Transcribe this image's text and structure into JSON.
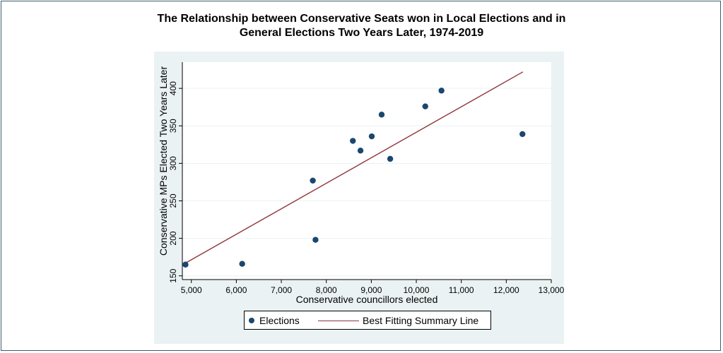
{
  "chart_data": {
    "type": "scatter",
    "title": "The Relationship between Conservative Seats won in Local Elections and in General Elections Two Years Later, 1974-2019",
    "title_lines": [
      "The Relationship between Conservative Seats won in Local Elections and in",
      "General Elections Two Years Later, 1974-2019"
    ],
    "xlabel": "Conservative councillors elected",
    "ylabel": "Conservative MPs Elected Two Years Later",
    "xlim": [
      4800,
      13000
    ],
    "ylim": [
      145,
      435
    ],
    "x_ticks": [
      5000,
      6000,
      7000,
      8000,
      9000,
      10000,
      11000,
      12000,
      13000
    ],
    "x_tick_labels": [
      "5,000",
      "6,000",
      "7,000",
      "8,000",
      "9,000",
      "10,000",
      "11,000",
      "12,000",
      "13,000"
    ],
    "y_ticks": [
      150,
      200,
      250,
      300,
      350,
      400
    ],
    "y_tick_labels": [
      "150",
      "200",
      "250",
      "300",
      "350",
      "400"
    ],
    "grid": true,
    "series": [
      {
        "name": "Elections",
        "points": [
          {
            "x": 4870,
            "y": 165
          },
          {
            "x": 6130,
            "y": 166
          },
          {
            "x": 7700,
            "y": 277
          },
          {
            "x": 7760,
            "y": 198
          },
          {
            "x": 8590,
            "y": 330
          },
          {
            "x": 8760,
            "y": 317
          },
          {
            "x": 9010,
            "y": 336
          },
          {
            "x": 9230,
            "y": 365
          },
          {
            "x": 9420,
            "y": 306
          },
          {
            "x": 10200,
            "y": 376
          },
          {
            "x": 10560,
            "y": 397
          },
          {
            "x": 12360,
            "y": 339
          }
        ]
      },
      {
        "name": "Best Fitting Summary Line",
        "type": "line",
        "points": [
          {
            "x": 4870,
            "y": 167
          },
          {
            "x": 12370,
            "y": 422
          }
        ]
      }
    ],
    "legend": {
      "position": "bottom",
      "entries": [
        "Elections",
        "Best Fitting Summary Line"
      ]
    },
    "colors": {
      "marker": "#1a476f",
      "fit_line": "#90353b",
      "panel_bg": "#eaf2f3",
      "grid": "#eaf2f3"
    }
  }
}
